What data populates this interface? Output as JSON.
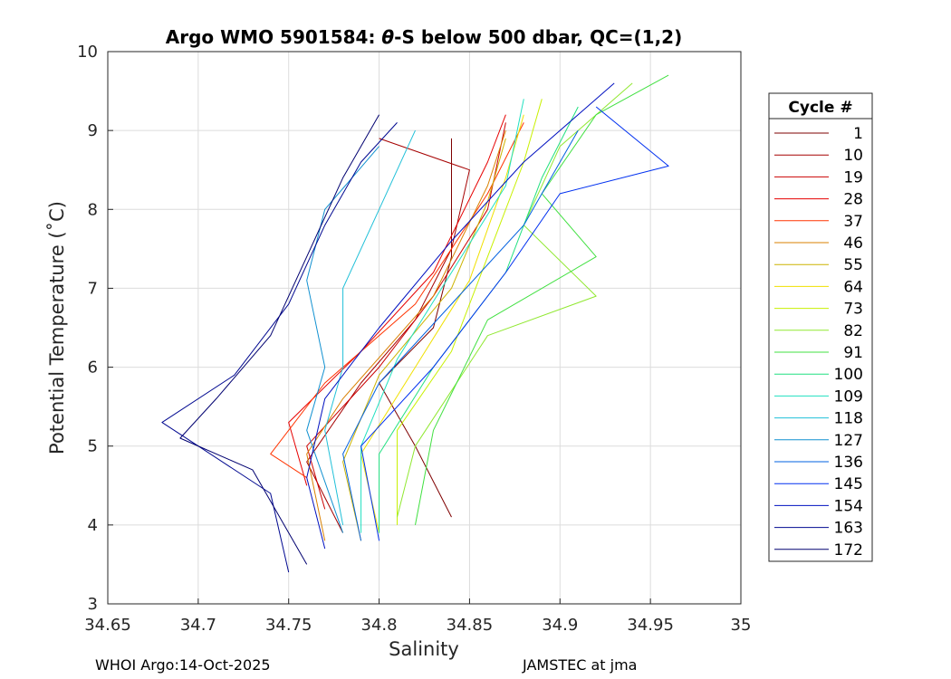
{
  "chart_data": {
    "type": "line",
    "title_prefix": "Argo WMO 5901584: ",
    "title_theta": "θ",
    "title_suffix": "-S below 500 dbar,  QC=(1,2)",
    "xlabel": "Salinity",
    "ylabel": "Potential Temperature (˚C)",
    "xlim": [
      34.65,
      35.0
    ],
    "ylim": [
      3,
      10
    ],
    "xticks": [
      "34.65",
      "34.7",
      "34.75",
      "34.8",
      "34.85",
      "34.9",
      "34.95",
      "35"
    ],
    "xtick_values": [
      34.65,
      34.7,
      34.75,
      34.8,
      34.85,
      34.9,
      34.95,
      35.0
    ],
    "yticks": [
      "3",
      "4",
      "5",
      "6",
      "7",
      "8",
      "9",
      "10"
    ],
    "ytick_values": [
      3,
      4,
      5,
      6,
      7,
      8,
      9,
      10
    ],
    "grid": true,
    "legend": {
      "title": "Cycle #",
      "placement": "right-outside",
      "entries": [
        "1",
        "10",
        "19",
        "28",
        "37",
        "46",
        "55",
        "64",
        "73",
        "82",
        "91",
        "100",
        "109",
        "118",
        "127",
        "136",
        "145",
        "154",
        "163",
        "172"
      ],
      "colors": [
        "#7f0000",
        "#a50000",
        "#cc0000",
        "#e60000",
        "#ff3300",
        "#d98000",
        "#ccb300",
        "#f0e000",
        "#c8f000",
        "#90e830",
        "#40e040",
        "#20e080",
        "#20e0c0",
        "#20c0d8",
        "#1090d0",
        "#0060e0",
        "#0030f0",
        "#0010c0",
        "#000890",
        "#000070"
      ]
    },
    "series": [
      {
        "name": "1",
        "color": "#7f0000",
        "points": [
          [
            34.84,
            4.1
          ],
          [
            34.82,
            5.0
          ],
          [
            34.8,
            5.8
          ],
          [
            34.83,
            6.5
          ],
          [
            34.84,
            7.4
          ],
          [
            34.84,
            8.2
          ],
          [
            34.84,
            8.9
          ]
        ]
      },
      {
        "name": "10",
        "color": "#a50000",
        "points": [
          [
            34.78,
            3.9
          ],
          [
            34.76,
            4.8
          ],
          [
            34.79,
            5.8
          ],
          [
            34.82,
            6.6
          ],
          [
            34.84,
            7.5
          ],
          [
            34.85,
            8.5
          ],
          [
            34.8,
            8.9
          ]
        ]
      },
      {
        "name": "19",
        "color": "#cc0000",
        "points": [
          [
            34.77,
            4.2
          ],
          [
            34.76,
            5.0
          ],
          [
            34.8,
            6.0
          ],
          [
            34.83,
            6.9
          ],
          [
            34.86,
            8.0
          ],
          [
            34.87,
            9.1
          ]
        ]
      },
      {
        "name": "28",
        "color": "#e60000",
        "points": [
          [
            34.76,
            4.5
          ],
          [
            34.75,
            5.3
          ],
          [
            34.79,
            6.2
          ],
          [
            34.83,
            7.2
          ],
          [
            34.86,
            8.6
          ],
          [
            34.87,
            9.2
          ]
        ]
      },
      {
        "name": "37",
        "color": "#ff3300",
        "points": [
          [
            34.76,
            4.6
          ],
          [
            34.74,
            4.9
          ],
          [
            34.77,
            5.8
          ],
          [
            34.82,
            6.8
          ],
          [
            34.86,
            8.2
          ],
          [
            34.88,
            9.1
          ]
        ]
      },
      {
        "name": "46",
        "color": "#d98000",
        "points": [
          [
            34.77,
            3.8
          ],
          [
            34.76,
            4.9
          ],
          [
            34.78,
            5.6
          ],
          [
            34.83,
            6.9
          ],
          [
            34.86,
            8.3
          ],
          [
            34.87,
            9.0
          ]
        ]
      },
      {
        "name": "55",
        "color": "#ccb300",
        "points": [
          [
            34.79,
            3.8
          ],
          [
            34.78,
            4.8
          ],
          [
            34.8,
            5.9
          ],
          [
            34.84,
            7.0
          ],
          [
            34.86,
            8.1
          ],
          [
            34.87,
            8.9
          ]
        ]
      },
      {
        "name": "64",
        "color": "#f0e000",
        "points": [
          [
            34.8,
            3.9
          ],
          [
            34.79,
            4.9
          ],
          [
            34.82,
            6.0
          ],
          [
            34.85,
            7.1
          ],
          [
            34.87,
            8.4
          ],
          [
            34.88,
            9.2
          ]
        ]
      },
      {
        "name": "73",
        "color": "#c8f000",
        "points": [
          [
            34.81,
            4.0
          ],
          [
            34.81,
            5.2
          ],
          [
            34.84,
            6.2
          ],
          [
            34.86,
            7.4
          ],
          [
            34.88,
            8.6
          ],
          [
            34.89,
            9.4
          ]
        ]
      },
      {
        "name": "82",
        "color": "#90e830",
        "points": [
          [
            34.81,
            4.1
          ],
          [
            34.82,
            5.0
          ],
          [
            34.86,
            6.4
          ],
          [
            34.92,
            6.9
          ],
          [
            34.88,
            7.8
          ],
          [
            34.9,
            8.8
          ],
          [
            34.94,
            9.6
          ]
        ]
      },
      {
        "name": "91",
        "color": "#40e040",
        "points": [
          [
            34.82,
            4.0
          ],
          [
            34.83,
            5.2
          ],
          [
            34.86,
            6.6
          ],
          [
            34.92,
            7.4
          ],
          [
            34.89,
            8.2
          ],
          [
            34.92,
            9.2
          ],
          [
            34.96,
            9.7
          ]
        ]
      },
      {
        "name": "100",
        "color": "#20e080",
        "points": [
          [
            34.8,
            3.9
          ],
          [
            34.8,
            4.9
          ],
          [
            34.83,
            6.0
          ],
          [
            34.87,
            7.2
          ],
          [
            34.89,
            8.4
          ],
          [
            34.91,
            9.3
          ]
        ]
      },
      {
        "name": "109",
        "color": "#20e0c0",
        "points": [
          [
            34.79,
            3.9
          ],
          [
            34.79,
            5.0
          ],
          [
            34.81,
            6.1
          ],
          [
            34.84,
            7.2
          ],
          [
            34.87,
            8.3
          ],
          [
            34.88,
            9.4
          ]
        ]
      },
      {
        "name": "118",
        "color": "#20c0d8",
        "points": [
          [
            34.78,
            4.0
          ],
          [
            34.77,
            5.2
          ],
          [
            34.78,
            6.0
          ],
          [
            34.78,
            7.0
          ],
          [
            34.8,
            8.0
          ],
          [
            34.82,
            9.0
          ]
        ]
      },
      {
        "name": "127",
        "color": "#1090d0",
        "points": [
          [
            34.78,
            3.9
          ],
          [
            34.76,
            5.2
          ],
          [
            34.77,
            6.0
          ],
          [
            34.76,
            7.1
          ],
          [
            34.77,
            8.0
          ],
          [
            34.8,
            8.8
          ]
        ]
      },
      {
        "name": "136",
        "color": "#0060e0",
        "points": [
          [
            34.79,
            3.8
          ],
          [
            34.78,
            4.9
          ],
          [
            34.8,
            5.8
          ],
          [
            34.84,
            6.8
          ],
          [
            34.88,
            7.8
          ],
          [
            34.91,
            9.0
          ]
        ]
      },
      {
        "name": "145",
        "color": "#0030f0",
        "points": [
          [
            34.8,
            3.8
          ],
          [
            34.79,
            5.0
          ],
          [
            34.83,
            6.0
          ],
          [
            34.87,
            7.2
          ],
          [
            34.9,
            8.2
          ],
          [
            34.96,
            8.55
          ],
          [
            34.92,
            9.3
          ]
        ]
      },
      {
        "name": "154",
        "color": "#0010c0",
        "points": [
          [
            34.77,
            3.7
          ],
          [
            34.76,
            4.6
          ],
          [
            34.77,
            5.6
          ],
          [
            34.8,
            6.5
          ],
          [
            34.84,
            7.6
          ],
          [
            34.88,
            8.6
          ],
          [
            34.93,
            9.6
          ]
        ]
      },
      {
        "name": "163",
        "color": "#000890",
        "points": [
          [
            34.75,
            3.4
          ],
          [
            34.74,
            4.4
          ],
          [
            34.7,
            5.0
          ],
          [
            34.68,
            5.3
          ],
          [
            34.72,
            5.9
          ],
          [
            34.75,
            6.8
          ],
          [
            34.77,
            7.8
          ],
          [
            34.79,
            8.6
          ],
          [
            34.81,
            9.1
          ]
        ]
      },
      {
        "name": "172",
        "color": "#000070",
        "points": [
          [
            34.76,
            3.5
          ],
          [
            34.73,
            4.7
          ],
          [
            34.69,
            5.1
          ],
          [
            34.71,
            5.6
          ],
          [
            34.74,
            6.4
          ],
          [
            34.76,
            7.4
          ],
          [
            34.78,
            8.4
          ],
          [
            34.8,
            9.2
          ]
        ]
      }
    ]
  },
  "footer": {
    "left": "WHOI Argo:14-Oct-2025",
    "right": "JAMSTEC at jma"
  }
}
